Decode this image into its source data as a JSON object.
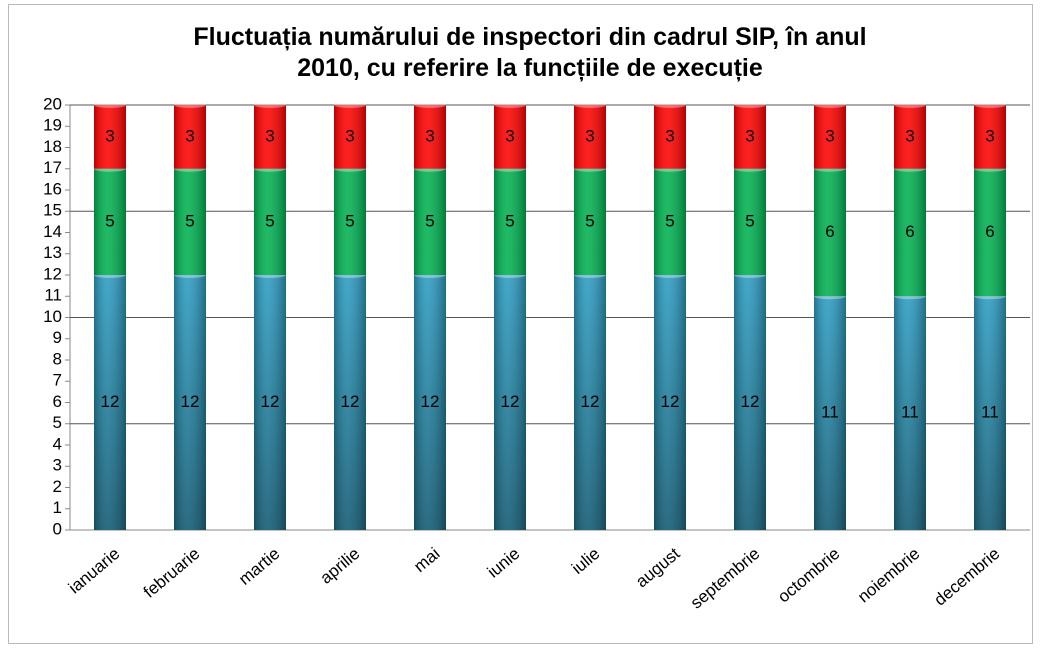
{
  "chart_data": {
    "type": "stacked_bar",
    "title": "Fluctuația numărului de inspectori din cadrul SIP, în anul 2010, cu referire la funcțiile de execuție",
    "categories": [
      "ianuarie",
      "februarie",
      "martie",
      "aprilie",
      "mai",
      "iunie",
      "iulie",
      "august",
      "septembrie",
      "octombrie",
      "noiembrie",
      "decembrie"
    ],
    "series": [
      {
        "color": "#2a9cc2",
        "values": [
          12,
          12,
          12,
          12,
          12,
          12,
          12,
          12,
          12,
          11,
          11,
          11
        ]
      },
      {
        "color": "#00b050",
        "values": [
          5,
          5,
          5,
          5,
          5,
          5,
          5,
          5,
          5,
          6,
          6,
          6
        ]
      },
      {
        "color": "#ff0000",
        "values": [
          3,
          3,
          3,
          3,
          3,
          3,
          3,
          3,
          3,
          3,
          3,
          3
        ]
      }
    ],
    "ylim": [
      0,
      20
    ],
    "yticks": [
      0,
      1,
      2,
      3,
      4,
      5,
      6,
      7,
      8,
      9,
      10,
      11,
      12,
      13,
      14,
      15,
      16,
      17,
      18,
      19,
      20
    ],
    "grid": true
  }
}
